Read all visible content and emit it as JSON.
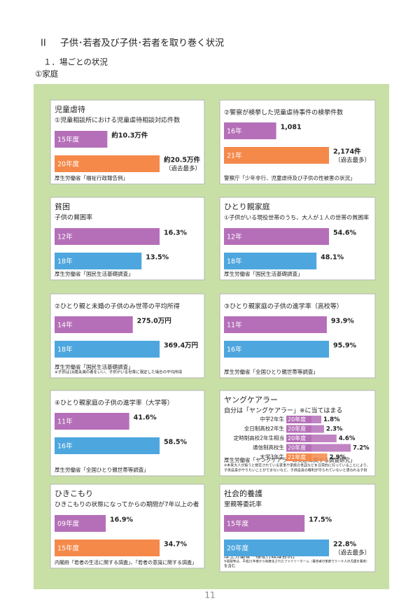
{
  "header": {
    "chapter": "II",
    "title": "子供･若者及び子供･若者を取り巻く状況",
    "section": "１．場ごとの状況",
    "subsection": "①家庭"
  },
  "panels": [
    {
      "title": "児童虐待",
      "subtitle": "①児童相談所における児童虐待相談対応件数",
      "bars": [
        {
          "label": "15年度",
          "value": 10.3,
          "value_label": "約10.3万件",
          "color": "#b56fb8"
        },
        {
          "label": "20年度",
          "value": 20.5,
          "value_label": "約20.5万件",
          "note": "（過去最多）",
          "color": "#f5894a"
        }
      ],
      "source": "厚生労働省「福祉行政報告例」"
    },
    {
      "subtitle": "②警察が検挙した児童虐待事件の検挙件数",
      "bars": [
        {
          "label": "16年",
          "value": 1081,
          "value_label": "1,081",
          "color": "#b56fb8"
        },
        {
          "label": "21年",
          "value": 2174,
          "value_label": "2,174件",
          "note": "（過去最多）",
          "color": "#f5894a"
        }
      ],
      "source": "警察庁「少年非行、児童虐待及び子供の性被害の状況」"
    },
    {
      "title": "貧困",
      "subtitle": "子供の貧困率",
      "bars": [
        {
          "label": "12年",
          "value": 16.3,
          "value_label": "16.3%",
          "color": "#b56fb8"
        },
        {
          "label": "18年",
          "value": 13.5,
          "value_label": "13.5%",
          "color": "#4da6de"
        }
      ],
      "source": "厚生労働省「国民生活基礎調査」"
    },
    {
      "title": "ひとり親家庭",
      "subtitle": "①子供がいる現役世帯のうち、大人が１人の世帯の貧困率",
      "bars": [
        {
          "label": "12年",
          "value": 54.6,
          "value_label": "54.6%",
          "color": "#b56fb8"
        },
        {
          "label": "18年",
          "value": 48.1,
          "value_label": "48.1%",
          "color": "#4da6de"
        }
      ],
      "source": "厚生労働省「国民生活基礎調査」"
    },
    {
      "subtitle": "②ひとり親と未婚の子供のみ世帯の平均所得",
      "bars": [
        {
          "label": "14年",
          "value": 275.0,
          "value_label": "275.0万円",
          "color": "#b56fb8"
        },
        {
          "label": "18年",
          "value": 369.4,
          "value_label": "369.4万円",
          "color": "#4da6de"
        }
      ],
      "source": "厚生労働省「国民生活基礎調査」",
      "note": [
        "※子供は18歳未満の者をいい、子供がいる世帯に限定した場合の平均所得"
      ]
    },
    {
      "subtitle": "③ひとり親家庭の子供の進学率（高校等）",
      "bars": [
        {
          "label": "11年",
          "value": 93.9,
          "value_label": "93.9%",
          "color": "#b56fb8"
        },
        {
          "label": "16年",
          "value": 95.9,
          "value_label": "95.9%",
          "color": "#4da6de"
        }
      ],
      "source": "厚生労働省「全国ひとり親世帯等調査」"
    },
    {
      "subtitle": "④ひとり親家庭の子供の進学率（大学等）",
      "bars": [
        {
          "label": "11年",
          "value": 41.6,
          "value_label": "41.6%",
          "color": "#b56fb8"
        },
        {
          "label": "16年",
          "value": 58.5,
          "value_label": "58.5%",
          "color": "#4da6de"
        }
      ],
      "source": "厚生労働省「全国ひとり親世帯等調査」"
    },
    {
      "title": "ヤングケアラー",
      "subtitle": "自分は「ヤングケアラー」※に当てはまる",
      "rows": [
        {
          "group": "中学2年生",
          "label": "20年度",
          "value": 1.8,
          "value_label": "1.8%",
          "color": "#b56fb8"
        },
        {
          "group": "全日制高校2年生",
          "label": "20年度",
          "value": 2.3,
          "value_label": "2.3%",
          "color": "#b56fb8"
        },
        {
          "group": "定時制高校2年生相当",
          "label": "20年度",
          "value": 4.6,
          "value_label": "4.6%",
          "color": "#b56fb8"
        },
        {
          "group": "通信制高校生",
          "label": "20年度",
          "value": 7.2,
          "value_label": "7.2%",
          "color": "#b56fb8"
        },
        {
          "group": "大学3年生",
          "label": "21年度",
          "value": 2.9,
          "value_label": "2.9%",
          "color": "#f5894a"
        }
      ],
      "source": "厚生労働省「ヤングケアラーの実態に関する調査研究」",
      "note": [
        "※本来大人が担うと想定されている家事や家族の世話などを日常的に行っていることにより、",
        "子供自身がやりたいことができないなど、子供自身の権利が守られていないと思われる子供"
      ]
    },
    {
      "title": "ひきこもり",
      "subtitle": "ひきこもりの状態になってからの期間が7年以上の者",
      "bars": [
        {
          "label": "09年度",
          "value": 16.9,
          "value_label": "16.9%",
          "color": "#b56fb8"
        },
        {
          "label": "15年度",
          "value": 34.7,
          "value_label": "34.7%",
          "color": "#f5894a"
        }
      ],
      "source": "内閣府「若者の生活に関する調査」、「若者の意識に関する調査」"
    },
    {
      "title": "社会的養護",
      "subtitle": "里親等委託率",
      "bars": [
        {
          "label": "15年度",
          "value": 17.5,
          "value_label": "17.5%",
          "color": "#b56fb8"
        },
        {
          "label": "20年度",
          "value": 22.8,
          "value_label": "22.8%",
          "note": "（過去最多）",
          "color": "#4da6de"
        }
      ],
      "source": "厚生労働省「福祉行政報告例」",
      "note": [
        "※里親等は、平成21年度から制度化されたファミリーホーム（養育者の家庭で５～６人の児童を養育）",
        "を含む"
      ]
    }
  ],
  "page_number": "11"
}
